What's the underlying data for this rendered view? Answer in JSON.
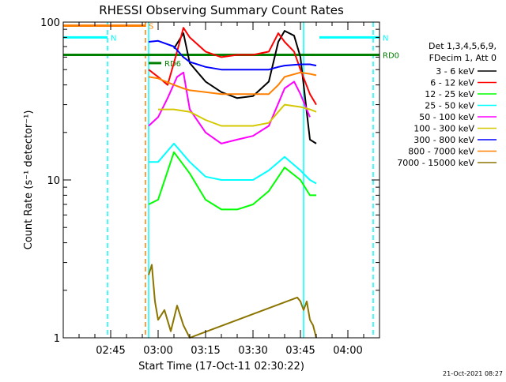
{
  "chart_data": {
    "type": "line",
    "title": "RHESSI Observing Summary Count Rates",
    "xlabel": "Start Time (17-Oct-11 02:30:22)",
    "ylabel": "Count Rate (s⁻¹ detector⁻¹)",
    "yscale": "log",
    "ylim": [
      1,
      100
    ],
    "xlim": [
      "02:30",
      "04:10"
    ],
    "x_ticks": [
      "02:45",
      "03:00",
      "03:15",
      "03:30",
      "03:45",
      "04:00"
    ],
    "y_ticks": [
      "1",
      "10",
      "100"
    ],
    "timestamp": "21-Oct-2021 08:27",
    "legend": {
      "position": "right",
      "header": [
        "Det 1,3,4,5,6,9,",
        "FDecim 1, Att 0"
      ]
    },
    "series": [
      {
        "name": "3 - 6 keV",
        "color": "#000000",
        "x": [
          "03:05",
          "03:08",
          "03:10",
          "03:15",
          "03:20",
          "03:25",
          "03:30",
          "03:35",
          "03:38",
          "03:40",
          "03:43",
          "03:45",
          "03:48",
          "03:50"
        ],
        "values": [
          68,
          85,
          55,
          42,
          36,
          33,
          34,
          42,
          75,
          88,
          82,
          60,
          18,
          17
        ]
      },
      {
        "name": "6 - 12 keV",
        "color": "#ff0000",
        "x": [
          "02:57",
          "03:00",
          "03:03",
          "03:06",
          "03:08",
          "03:10",
          "03:15",
          "03:20",
          "03:25",
          "03:30",
          "03:35",
          "03:38",
          "03:40",
          "03:43",
          "03:45",
          "03:48",
          "03:50"
        ],
        "values": [
          50,
          45,
          40,
          65,
          92,
          80,
          65,
          60,
          62,
          62,
          65,
          85,
          75,
          65,
          50,
          35,
          30
        ]
      },
      {
        "name": "12 - 25 keV",
        "color": "#00ff00",
        "x": [
          "02:57",
          "03:00",
          "03:05",
          "03:10",
          "03:15",
          "03:20",
          "03:25",
          "03:30",
          "03:35",
          "03:40",
          "03:45",
          "03:48",
          "03:50"
        ],
        "values": [
          7,
          7.5,
          15,
          11,
          7.5,
          6.5,
          6.5,
          7,
          8.5,
          12,
          10,
          8,
          8
        ]
      },
      {
        "name": "25 - 50 keV",
        "color": "#00ffff",
        "x": [
          "02:57",
          "03:00",
          "03:05",
          "03:10",
          "03:15",
          "03:20",
          "03:25",
          "03:30",
          "03:35",
          "03:40",
          "03:45",
          "03:48",
          "03:50"
        ],
        "values": [
          13,
          13,
          17,
          13,
          10.5,
          10,
          10,
          10,
          11.5,
          14,
          11.5,
          10,
          9.5
        ]
      },
      {
        "name": "50 - 100 keV",
        "color": "#ff00ff",
        "x": [
          "02:57",
          "03:00",
          "03:03",
          "03:06",
          "03:08",
          "03:10",
          "03:15",
          "03:20",
          "03:25",
          "03:30",
          "03:35",
          "03:40",
          "03:43",
          "03:45",
          "03:48"
        ],
        "values": [
          22,
          25,
          33,
          45,
          48,
          28,
          20,
          17,
          18,
          19,
          22,
          38,
          42,
          35,
          25
        ]
      },
      {
        "name": "100 - 300 keV",
        "color": "#d4c800",
        "x": [
          "03:00",
          "03:05",
          "03:10",
          "03:15",
          "03:20",
          "03:25",
          "03:30",
          "03:35",
          "03:38",
          "03:40",
          "03:45",
          "03:48",
          "03:50"
        ],
        "values": [
          28,
          28,
          27,
          24,
          22,
          22,
          22,
          23,
          27,
          30,
          29,
          28,
          27
        ]
      },
      {
        "name": "300 - 800 keV",
        "color": "#0000ff",
        "x": [
          "02:57",
          "03:00",
          "03:05",
          "03:08",
          "03:10",
          "03:15",
          "03:20",
          "03:25",
          "03:30",
          "03:35",
          "03:38",
          "03:40",
          "03:45",
          "03:48",
          "03:50"
        ],
        "values": [
          75,
          76,
          70,
          60,
          56,
          52,
          50,
          50,
          50,
          50,
          52,
          53,
          54,
          54,
          53
        ]
      },
      {
        "name": "800 - 7000 keV",
        "color": "#ff8000",
        "x": [
          "02:57",
          "03:00",
          "03:05",
          "03:08",
          "03:10",
          "03:15",
          "03:20",
          "03:25",
          "03:30",
          "03:35",
          "03:38",
          "03:40",
          "03:45",
          "03:48",
          "03:50"
        ],
        "values": [
          45,
          44,
          40,
          38,
          37,
          36,
          35,
          35,
          35,
          35,
          40,
          45,
          48,
          47,
          46
        ]
      },
      {
        "name": "7000 - 15000 keV",
        "color": "#8b7500",
        "x": [
          "02:57",
          "02:58",
          "02:59",
          "03:00",
          "03:02",
          "03:04",
          "03:06",
          "03:08",
          "03:10",
          "03:44",
          "03:45",
          "03:46",
          "03:47",
          "03:48",
          "03:49",
          "03:50"
        ],
        "values": [
          2.5,
          2.9,
          1.7,
          1.3,
          1.5,
          1.1,
          1.6,
          1.2,
          1.0,
          1.8,
          1.7,
          1.5,
          1.7,
          1.3,
          1.2,
          1.0
        ]
      }
    ],
    "annotations": [
      {
        "label": "S",
        "color": "#ff8000",
        "y": 95,
        "x_range": [
          "02:30",
          "02:56"
        ]
      },
      {
        "label": "N",
        "color": "#00ffff",
        "y": 80,
        "x_range": [
          "02:30",
          "02:44"
        ]
      },
      {
        "label": "N",
        "color": "#00ffff",
        "y": 80,
        "x_range": [
          "03:51",
          "04:10"
        ]
      },
      {
        "label": "RD0",
        "color": "#008000",
        "y": 62,
        "x_range": [
          "02:30",
          "04:10"
        ]
      },
      {
        "label": "RD6",
        "color": "#008000",
        "y": 55,
        "x_range": [
          "02:57",
          "03:01"
        ]
      }
    ],
    "vertical_markers": [
      {
        "x": "02:44",
        "color": "#00ffff",
        "style": "dashed"
      },
      {
        "x": "02:56",
        "color": "#ff8000",
        "style": "dashed"
      },
      {
        "x": "02:57",
        "color": "#00ffff",
        "style": "solid"
      },
      {
        "x": "03:46",
        "color": "#00ffff",
        "style": "solid"
      },
      {
        "x": "04:08",
        "color": "#00ffff",
        "style": "dashed"
      }
    ]
  }
}
